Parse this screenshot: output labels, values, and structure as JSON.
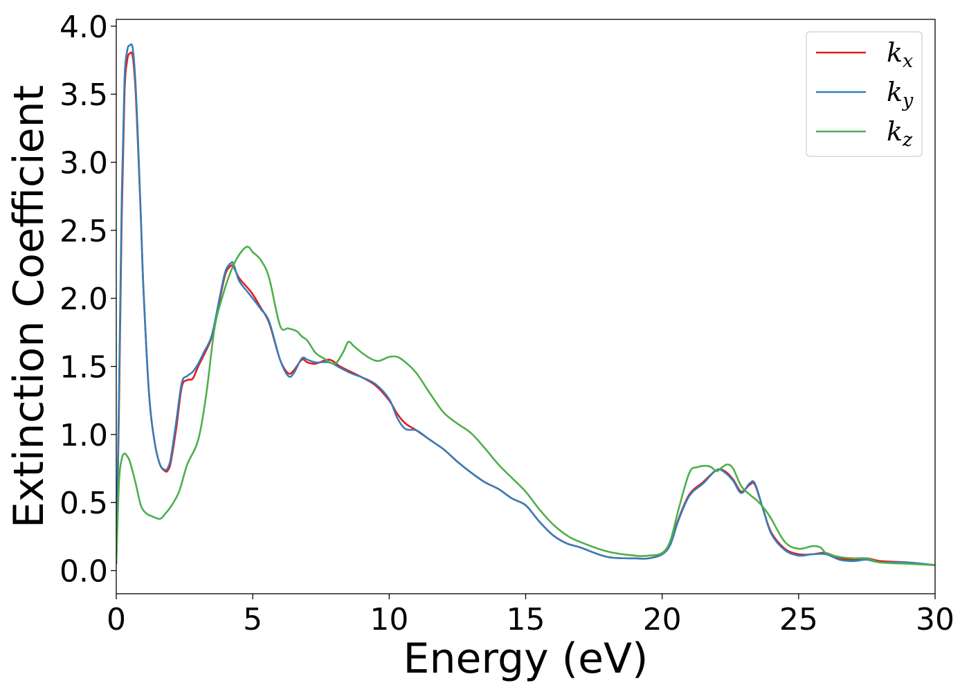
{
  "chart_data": {
    "type": "line",
    "xlabel": "Energy (eV)",
    "ylabel": "Extinction Coefficient",
    "xlim": [
      0,
      30
    ],
    "ylim": [
      -0.17,
      4.05
    ],
    "xticks": [
      0,
      5,
      10,
      15,
      20,
      25,
      30
    ],
    "xtick_labels": [
      "0",
      "5",
      "10",
      "15",
      "20",
      "25",
      "30"
    ],
    "yticks": [
      0.0,
      0.5,
      1.0,
      1.5,
      2.0,
      2.5,
      3.0,
      3.5,
      4.0
    ],
    "ytick_labels": [
      "0.0",
      "0.5",
      "1.0",
      "1.5",
      "2.0",
      "2.5",
      "3.0",
      "3.5",
      "4.0"
    ],
    "grid": false,
    "legend_position": "top-right",
    "series": [
      {
        "name": "k",
        "subscript": "x",
        "color": "#e41a1c",
        "x": [
          0,
          0.1,
          0.2,
          0.3,
          0.4,
          0.5,
          0.6,
          0.7,
          0.8,
          0.9,
          1.0,
          1.2,
          1.4,
          1.6,
          1.8,
          1.9,
          2.0,
          2.2,
          2.4,
          2.6,
          2.8,
          3.0,
          3.2,
          3.5,
          3.8,
          4.0,
          4.2,
          4.3,
          4.5,
          4.8,
          5.0,
          5.3,
          5.6,
          6.0,
          6.3,
          6.5,
          6.8,
          7.0,
          7.3,
          7.8,
          8.2,
          8.6,
          9.0,
          9.5,
          10.0,
          10.3,
          10.6,
          11.0,
          11.5,
          12.0,
          12.5,
          13.0,
          13.5,
          14.0,
          14.5,
          15.0,
          15.5,
          16.0,
          16.5,
          17.0,
          18.0,
          19.0,
          19.5,
          20.0,
          20.3,
          20.6,
          21.0,
          21.5,
          22.0,
          22.3,
          22.6,
          22.9,
          23.2,
          23.4,
          23.7,
          24.0,
          24.5,
          25.0,
          25.5,
          26.0,
          26.5,
          27.0,
          27.5,
          28.0,
          29.0,
          30.0
        ],
        "values": [
          0.05,
          1.2,
          2.6,
          3.5,
          3.75,
          3.8,
          3.78,
          3.55,
          3.1,
          2.6,
          2.05,
          1.3,
          0.95,
          0.78,
          0.73,
          0.74,
          0.8,
          1.05,
          1.35,
          1.4,
          1.41,
          1.5,
          1.58,
          1.72,
          2.0,
          2.18,
          2.24,
          2.23,
          2.15,
          2.08,
          2.03,
          1.93,
          1.82,
          1.55,
          1.45,
          1.47,
          1.55,
          1.53,
          1.52,
          1.55,
          1.5,
          1.46,
          1.42,
          1.36,
          1.25,
          1.15,
          1.08,
          1.03,
          0.96,
          0.89,
          0.8,
          0.72,
          0.65,
          0.6,
          0.53,
          0.48,
          0.36,
          0.26,
          0.2,
          0.17,
          0.1,
          0.09,
          0.09,
          0.12,
          0.2,
          0.38,
          0.56,
          0.65,
          0.74,
          0.73,
          0.67,
          0.58,
          0.63,
          0.63,
          0.45,
          0.28,
          0.16,
          0.12,
          0.12,
          0.13,
          0.09,
          0.08,
          0.09,
          0.07,
          0.06,
          0.04
        ]
      },
      {
        "name": "k",
        "subscript": "y",
        "color": "#377eb8",
        "x": [
          0,
          0.1,
          0.2,
          0.3,
          0.4,
          0.5,
          0.6,
          0.7,
          0.8,
          0.9,
          1.0,
          1.2,
          1.4,
          1.6,
          1.8,
          1.9,
          2.0,
          2.2,
          2.4,
          2.6,
          2.8,
          3.0,
          3.2,
          3.5,
          3.8,
          4.0,
          4.2,
          4.3,
          4.5,
          4.8,
          5.0,
          5.3,
          5.6,
          6.0,
          6.3,
          6.5,
          6.8,
          7.0,
          7.3,
          7.8,
          8.2,
          8.6,
          9.0,
          9.5,
          10.0,
          10.3,
          10.6,
          11.0,
          11.5,
          12.0,
          12.5,
          13.0,
          13.5,
          14.0,
          14.5,
          15.0,
          15.5,
          16.0,
          16.5,
          17.0,
          18.0,
          19.0,
          19.5,
          20.0,
          20.3,
          20.6,
          21.0,
          21.5,
          22.0,
          22.3,
          22.6,
          22.9,
          23.2,
          23.4,
          23.7,
          24.0,
          24.5,
          25.0,
          25.5,
          26.0,
          26.5,
          27.0,
          27.5,
          28.0,
          29.0,
          30.0
        ],
        "values": [
          0.05,
          1.3,
          2.75,
          3.6,
          3.82,
          3.86,
          3.84,
          3.6,
          3.15,
          2.6,
          2.05,
          1.3,
          0.95,
          0.78,
          0.74,
          0.76,
          0.83,
          1.1,
          1.38,
          1.43,
          1.46,
          1.52,
          1.6,
          1.73,
          2.02,
          2.2,
          2.26,
          2.25,
          2.13,
          2.05,
          2.0,
          1.92,
          1.83,
          1.55,
          1.43,
          1.45,
          1.56,
          1.55,
          1.53,
          1.53,
          1.49,
          1.45,
          1.42,
          1.37,
          1.26,
          1.12,
          1.04,
          1.03,
          0.96,
          0.89,
          0.8,
          0.72,
          0.65,
          0.6,
          0.53,
          0.48,
          0.36,
          0.26,
          0.2,
          0.17,
          0.1,
          0.09,
          0.09,
          0.12,
          0.19,
          0.37,
          0.55,
          0.64,
          0.74,
          0.72,
          0.66,
          0.57,
          0.64,
          0.64,
          0.45,
          0.27,
          0.15,
          0.11,
          0.12,
          0.12,
          0.08,
          0.07,
          0.08,
          0.06,
          0.06,
          0.04
        ]
      },
      {
        "name": "k",
        "subscript": "z",
        "color": "#4daf4a",
        "x": [
          0,
          0.1,
          0.2,
          0.3,
          0.4,
          0.5,
          0.7,
          0.9,
          1.1,
          1.3,
          1.6,
          1.8,
          2.0,
          2.3,
          2.6,
          3.0,
          3.3,
          3.6,
          3.9,
          4.2,
          4.5,
          4.8,
          5.0,
          5.3,
          5.6,
          6.0,
          6.3,
          6.6,
          6.8,
          7.0,
          7.3,
          7.6,
          8.0,
          8.3,
          8.5,
          8.7,
          9.0,
          9.3,
          9.6,
          10.0,
          10.3,
          10.6,
          11.0,
          11.5,
          12.0,
          12.5,
          13.0,
          13.5,
          14.0,
          14.5,
          15.0,
          15.5,
          16.0,
          16.5,
          17.0,
          18.0,
          19.0,
          19.5,
          20.0,
          20.3,
          20.6,
          21.0,
          21.3,
          21.6,
          21.8,
          22.0,
          22.2,
          22.4,
          22.6,
          22.9,
          23.2,
          23.5,
          23.8,
          24.0,
          24.5,
          25.0,
          25.5,
          25.8,
          26.0,
          26.5,
          27.0,
          27.5,
          28.0,
          29.0,
          30.0
        ],
        "values": [
          0.05,
          0.65,
          0.82,
          0.86,
          0.84,
          0.8,
          0.65,
          0.48,
          0.42,
          0.4,
          0.38,
          0.42,
          0.47,
          0.58,
          0.78,
          0.96,
          1.3,
          1.78,
          2.02,
          2.2,
          2.32,
          2.38,
          2.34,
          2.28,
          2.15,
          1.8,
          1.78,
          1.76,
          1.72,
          1.69,
          1.6,
          1.56,
          1.52,
          1.6,
          1.68,
          1.65,
          1.6,
          1.56,
          1.54,
          1.57,
          1.57,
          1.53,
          1.45,
          1.3,
          1.16,
          1.08,
          1.01,
          0.9,
          0.78,
          0.68,
          0.58,
          0.45,
          0.34,
          0.26,
          0.21,
          0.14,
          0.11,
          0.11,
          0.13,
          0.22,
          0.45,
          0.72,
          0.76,
          0.77,
          0.76,
          0.73,
          0.76,
          0.78,
          0.75,
          0.62,
          0.56,
          0.51,
          0.44,
          0.38,
          0.21,
          0.16,
          0.18,
          0.17,
          0.13,
          0.1,
          0.09,
          0.09,
          0.06,
          0.05,
          0.04
        ]
      }
    ]
  }
}
